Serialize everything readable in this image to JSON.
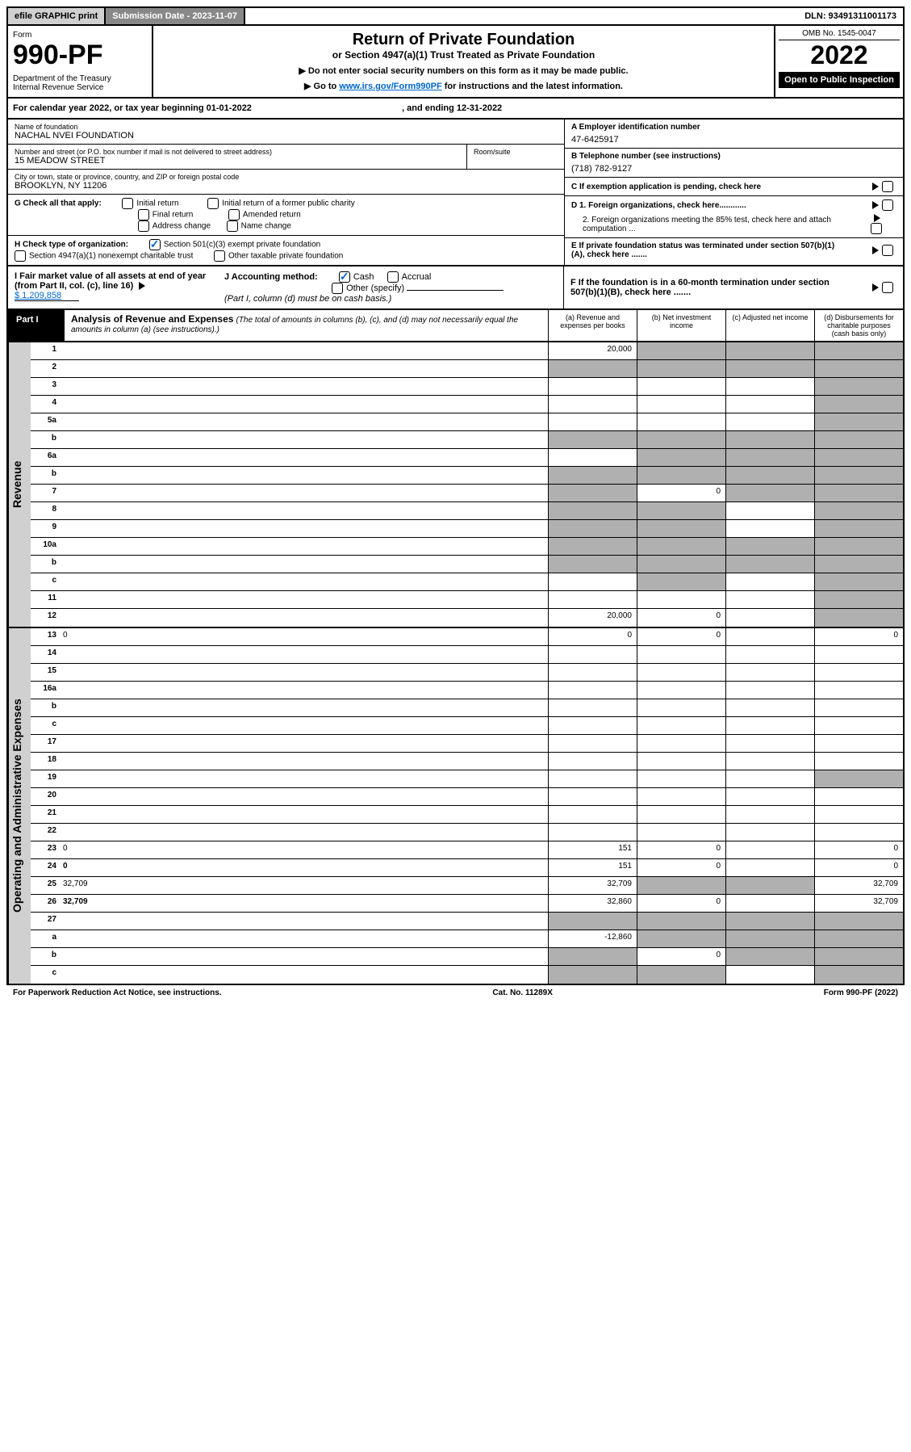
{
  "topbar": {
    "efile": "efile GRAPHIC print",
    "subdate_label": "Submission Date - 2023-11-07",
    "dln": "DLN: 93491311001173"
  },
  "header": {
    "form_word": "Form",
    "form_num": "990-PF",
    "dept": "Department of the Treasury\nInternal Revenue Service",
    "title": "Return of Private Foundation",
    "subtitle": "or Section 4947(a)(1) Trust Treated as Private Foundation",
    "note1": "▶ Do not enter social security numbers on this form as it may be made public.",
    "note2_pre": "▶ Go to ",
    "note2_link": "www.irs.gov/Form990PF",
    "note2_post": " for instructions and the latest information.",
    "omb": "OMB No. 1545-0047",
    "year": "2022",
    "open": "Open to Public Inspection"
  },
  "cal": {
    "text_pre": "For calendar year 2022, or tax year beginning ",
    "begin": "01-01-2022",
    "mid": " , and ending ",
    "end": "12-31-2022"
  },
  "entity": {
    "name_lbl": "Name of foundation",
    "name": "NACHAL NVEI FOUNDATION",
    "addr_lbl": "Number and street (or P.O. box number if mail is not delivered to street address)",
    "addr": "15 MEADOW STREET",
    "room_lbl": "Room/suite",
    "city_lbl": "City or town, state or province, country, and ZIP or foreign postal code",
    "city": "BROOKLYN, NY  11206",
    "a_lbl": "A Employer identification number",
    "a_val": "47-6425917",
    "b_lbl": "B Telephone number (see instructions)",
    "b_val": "(718) 782-9127",
    "c_lbl": "C If exemption application is pending, check here",
    "g_lbl": "G Check all that apply:",
    "g_opts": [
      "Initial return",
      "Final return",
      "Address change",
      "Initial return of a former public charity",
      "Amended return",
      "Name change"
    ],
    "d1": "D 1. Foreign organizations, check here............",
    "d2": "2. Foreign organizations meeting the 85% test, check here and attach computation ...",
    "h_lbl": "H Check type of organization:",
    "h1": "Section 501(c)(3) exempt private foundation",
    "h2": "Section 4947(a)(1) nonexempt charitable trust",
    "h3": "Other taxable private foundation",
    "e_lbl": "E  If private foundation status was terminated under section 507(b)(1)(A), check here .......",
    "i_lbl": "I Fair market value of all assets at end of year (from Part II, col. (c), line 16)",
    "i_val": "$  1,209,858",
    "j_lbl": "J Accounting method:",
    "j_cash": "Cash",
    "j_acc": "Accrual",
    "j_other": "Other (specify)",
    "j_note": "(Part I, column (d) must be on cash basis.)",
    "f_lbl": "F  If the foundation is in a 60-month termination under section 507(b)(1)(B), check here .......",
    "tri": "▶"
  },
  "part1": {
    "tab": "Part I",
    "title": "Analysis of Revenue and Expenses",
    "desc": "(The total of amounts in columns (b), (c), and (d) may not necessarily equal the amounts in column (a) (see instructions).)",
    "col_a": "(a) Revenue and expenses per books",
    "col_b": "(b) Net investment income",
    "col_c": "(c) Adjusted net income",
    "col_d": "(d) Disbursements for charitable purposes (cash basis only)"
  },
  "sides": {
    "rev": "Revenue",
    "exp": "Operating and Administrative Expenses"
  },
  "rows": [
    {
      "n": "1",
      "d": "",
      "a": "20,000",
      "b": "",
      "c": "",
      "sb": true,
      "sc": true,
      "sd": true
    },
    {
      "n": "2",
      "d": "",
      "a": "",
      "b": "",
      "c": "",
      "sb": true,
      "sc": true,
      "sd": true,
      "noc": true
    },
    {
      "n": "3",
      "d": "",
      "a": "",
      "b": "",
      "c": "",
      "sd": true
    },
    {
      "n": "4",
      "d": "",
      "a": "",
      "b": "",
      "c": "",
      "sd": true
    },
    {
      "n": "5a",
      "d": "",
      "a": "",
      "b": "",
      "c": "",
      "sd": true
    },
    {
      "n": "b",
      "d": "",
      "a": "",
      "b": "",
      "c": "",
      "sa": true,
      "sb": true,
      "sc": true,
      "sd": true
    },
    {
      "n": "6a",
      "d": "",
      "a": "",
      "b": "",
      "c": "",
      "sb": true,
      "sc": true,
      "sd": true
    },
    {
      "n": "b",
      "d": "",
      "a": "",
      "b": "",
      "c": "",
      "sa": true,
      "sb": true,
      "sc": true,
      "sd": true
    },
    {
      "n": "7",
      "d": "",
      "a": "",
      "b": "0",
      "c": "",
      "sa": true,
      "sc": true,
      "sd": true
    },
    {
      "n": "8",
      "d": "",
      "a": "",
      "b": "",
      "c": "",
      "sa": true,
      "sb": true,
      "sd": true
    },
    {
      "n": "9",
      "d": "",
      "a": "",
      "b": "",
      "c": "",
      "sa": true,
      "sb": true,
      "sd": true
    },
    {
      "n": "10a",
      "d": "",
      "a": "",
      "b": "",
      "c": "",
      "sa": true,
      "sb": true,
      "sc": true,
      "sd": true
    },
    {
      "n": "b",
      "d": "",
      "a": "",
      "b": "",
      "c": "",
      "sa": true,
      "sb": true,
      "sc": true,
      "sd": true
    },
    {
      "n": "c",
      "d": "",
      "a": "",
      "b": "",
      "c": "",
      "sb": true,
      "sd": true
    },
    {
      "n": "11",
      "d": "",
      "a": "",
      "b": "",
      "c": "",
      "sd": true
    },
    {
      "n": "12",
      "d": "",
      "a": "20,000",
      "b": "0",
      "c": "",
      "sd": true,
      "bold": true
    }
  ],
  "rows2": [
    {
      "n": "13",
      "d": "0",
      "a": "0",
      "b": "0",
      "c": ""
    },
    {
      "n": "14",
      "d": "",
      "a": "",
      "b": "",
      "c": ""
    },
    {
      "n": "15",
      "d": "",
      "a": "",
      "b": "",
      "c": ""
    },
    {
      "n": "16a",
      "d": "",
      "a": "",
      "b": "",
      "c": ""
    },
    {
      "n": "b",
      "d": "",
      "a": "",
      "b": "",
      "c": ""
    },
    {
      "n": "c",
      "d": "",
      "a": "",
      "b": "",
      "c": ""
    },
    {
      "n": "17",
      "d": "",
      "a": "",
      "b": "",
      "c": ""
    },
    {
      "n": "18",
      "d": "",
      "a": "",
      "b": "",
      "c": ""
    },
    {
      "n": "19",
      "d": "",
      "a": "",
      "b": "",
      "c": "",
      "sd": true
    },
    {
      "n": "20",
      "d": "",
      "a": "",
      "b": "",
      "c": ""
    },
    {
      "n": "21",
      "d": "",
      "a": "",
      "b": "",
      "c": ""
    },
    {
      "n": "22",
      "d": "",
      "a": "",
      "b": "",
      "c": ""
    },
    {
      "n": "23",
      "d": "0",
      "a": "151",
      "b": "0",
      "c": ""
    },
    {
      "n": "24",
      "d": "0",
      "a": "151",
      "b": "0",
      "c": "",
      "bold": true
    },
    {
      "n": "25",
      "d": "32,709",
      "a": "32,709",
      "b": "",
      "c": "",
      "sb": true,
      "sc": true
    },
    {
      "n": "26",
      "d": "32,709",
      "a": "32,860",
      "b": "0",
      "c": "",
      "bold": true
    },
    {
      "n": "27",
      "d": "",
      "a": "",
      "b": "",
      "c": "",
      "sa": true,
      "sb": true,
      "sc": true,
      "sd": true
    },
    {
      "n": "a",
      "d": "",
      "a": "-12,860",
      "b": "",
      "c": "",
      "sb": true,
      "sc": true,
      "sd": true,
      "bold": true
    },
    {
      "n": "b",
      "d": "",
      "a": "",
      "b": "0",
      "c": "",
      "sa": true,
      "sc": true,
      "sd": true,
      "bold": true
    },
    {
      "n": "c",
      "d": "",
      "a": "",
      "b": "",
      "c": "",
      "sa": true,
      "sb": true,
      "sd": true,
      "bold": true
    }
  ],
  "footer": {
    "left": "For Paperwork Reduction Act Notice, see instructions.",
    "mid": "Cat. No. 11289X",
    "right": "Form 990-PF (2022)"
  }
}
